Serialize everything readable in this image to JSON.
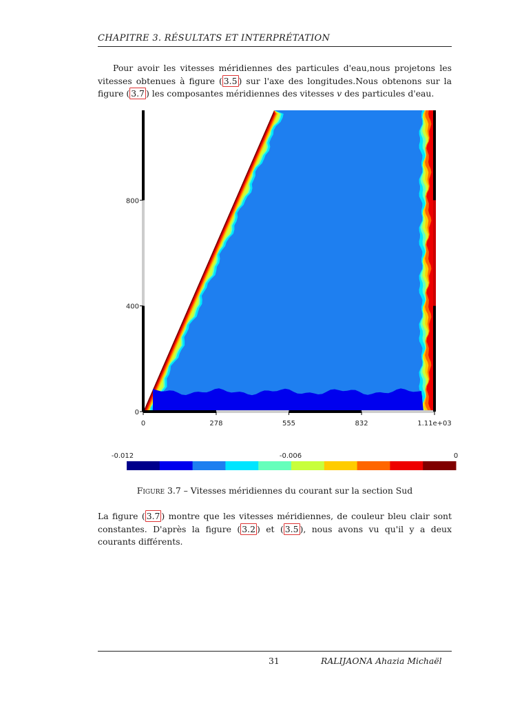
{
  "header": {
    "chapter": "CHAPITRE 3.  RÉSULTATS ET INTERPRÉTATION"
  },
  "paragraph1": {
    "t1": "Pour avoir les vitesses méridiennes des particules d'eau,nous projetons les vitesses obtenues à figure (",
    "ref1": "3.5",
    "t2": ") sur l'axe des longitudes.Nous obtenons sur la figure (",
    "ref2": "3.7",
    "t3": ") les composantes méridiennes des vitesses ",
    "var": "v",
    "t4": " des particules d'eau."
  },
  "chart_data": {
    "type": "heatmap",
    "title": "",
    "xlabel": "",
    "ylabel": "",
    "x_ticks": [
      "0",
      "278",
      "555",
      "832",
      "1.11e+03"
    ],
    "y_ticks": [
      "0",
      "400",
      "800"
    ],
    "xlim": [
      0,
      1110
    ],
    "ylim": [
      0,
      1140
    ],
    "colorbar": {
      "min_label": "-0.012",
      "mid_label": "-0.006",
      "max_label": "0",
      "colors": [
        "#00008b",
        "#0000ee",
        "#1e7ff0",
        "#00e5ff",
        "#66ffbb",
        "#c8ff3c",
        "#ffcc00",
        "#ff6600",
        "#ee0000",
        "#800000"
      ]
    },
    "regions": [
      {
        "description": "interior",
        "value_range": [
          -0.0084,
          -0.0072
        ],
        "color": "#1e7ff0"
      },
      {
        "description": "bottom layer y < ~75",
        "value_range": [
          -0.0108,
          -0.0096
        ],
        "color": "#0000ee"
      },
      {
        "description": "sloped west boundary",
        "value_range": [
          -0.0036,
          0
        ],
        "color": "#800000"
      },
      {
        "description": "east boundary",
        "value_range": [
          -0.0036,
          0
        ],
        "color": "#ee0000"
      }
    ]
  },
  "caption": {
    "label": "Figure 3.7",
    "sep": " – ",
    "text": "Vitesses méridiennes du courant sur la section Sud"
  },
  "paragraph2": {
    "t1": "La figure (",
    "ref1": "3.7",
    "t2": ") montre que les vitesses méridiennes, de couleur bleu clair sont constantes. D'après la figure (",
    "ref2": "3.2",
    "t3": ") et (",
    "ref3": "3.5",
    "t4": "), nous avons vu qu'il y a deux courants différents."
  },
  "footer": {
    "page_number": "31",
    "author": "RALIJAONA Ahazia Michaël"
  }
}
